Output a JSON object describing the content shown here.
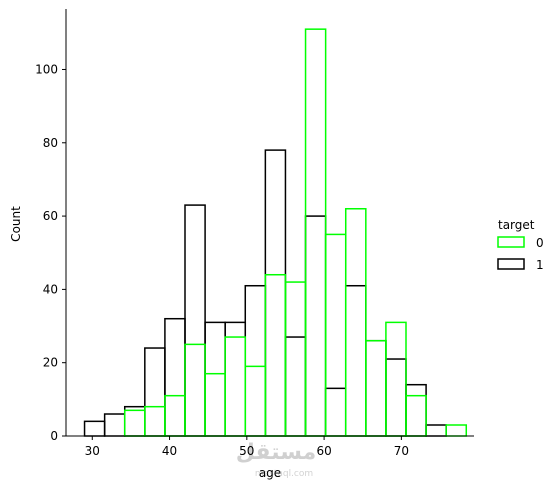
{
  "chart_data": {
    "type": "histogram",
    "xlabel": "age",
    "ylabel": "Count",
    "x_ticks": [
      "30",
      "40",
      "50",
      "60",
      "70"
    ],
    "y_ticks": [
      "0",
      "20",
      "40",
      "60",
      "80",
      "100"
    ],
    "xlim": [
      26.6,
      79.4
    ],
    "ylim": [
      0,
      116.5
    ],
    "bin_start": 29,
    "bin_width": 2.6,
    "legend": {
      "title": "target",
      "placement": "right",
      "entries": [
        {
          "label": "0",
          "color": "#00ff00"
        },
        {
          "label": "1",
          "color": "#000000"
        }
      ]
    },
    "series": [
      {
        "name": "0",
        "color": "#00ff00",
        "values": [
          0,
          0,
          7,
          8,
          11,
          25,
          17,
          27,
          19,
          44,
          42,
          111,
          55,
          62,
          26,
          31,
          11,
          0,
          3
        ]
      },
      {
        "name": "1",
        "color": "#000000",
        "values": [
          4,
          6,
          8,
          24,
          32,
          63,
          31,
          31,
          41,
          78,
          27,
          60,
          13,
          41,
          26,
          21,
          14,
          3,
          0
        ]
      }
    ],
    "grid": false
  },
  "watermark": {
    "main": "مستقل",
    "sub": "mostaql.com"
  }
}
